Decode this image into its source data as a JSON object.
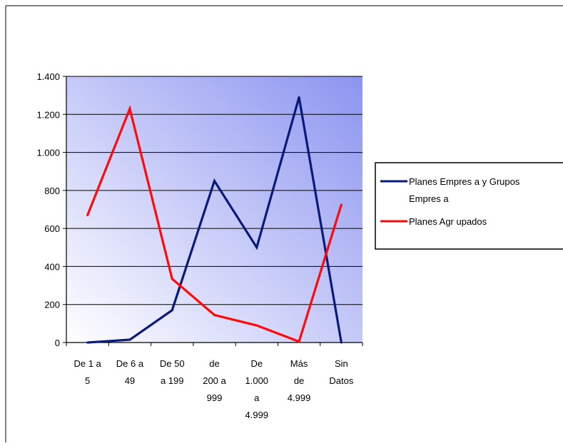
{
  "chart_data": {
    "type": "line",
    "categories": [
      [
        "De 1 a",
        "5"
      ],
      [
        "De 6 a",
        "49"
      ],
      [
        "De 50",
        "a 199"
      ],
      [
        "de",
        "200 a",
        "999"
      ],
      [
        "De",
        "1.000",
        "a",
        "4.999"
      ],
      [
        "Más",
        "de",
        "4.999"
      ],
      [
        "Sin",
        "Datos"
      ]
    ],
    "ylim": [
      0,
      1400
    ],
    "yticks": [
      0,
      200,
      400,
      600,
      800,
      1000,
      1200,
      1400
    ],
    "ytick_labels": [
      "0",
      "200",
      "400",
      "600",
      "800",
      "1.000",
      "1.200",
      "1.400"
    ],
    "grid": true,
    "legend_position": "right",
    "series": [
      {
        "name": "Planes Empresa y Grupos Empresa",
        "legend_lines": [
          "Planes Empres a y Grupos",
          "Empres a"
        ],
        "color": "#0a1a7a",
        "values": [
          0,
          15,
          170,
          850,
          500,
          1290,
          0
        ]
      },
      {
        "name": "Planes Agrupados",
        "legend_lines": [
          "Planes Agr upados"
        ],
        "color": "#ff0a0a",
        "values": [
          670,
          1230,
          335,
          145,
          90,
          5,
          725
        ]
      }
    ],
    "colors": {
      "plot_gradient_start": "#ffffff",
      "plot_gradient_end": "#8c94f0"
    }
  }
}
